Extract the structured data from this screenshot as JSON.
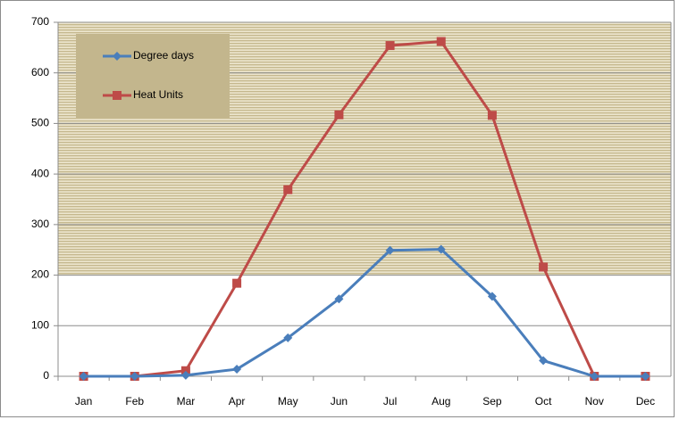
{
  "chart_data": {
    "type": "line",
    "categories": [
      "Jan",
      "Feb",
      "Mar",
      "Apr",
      "May",
      "Jun",
      "Jul",
      "Aug",
      "Sep",
      "Oct",
      "Nov",
      "Dec"
    ],
    "series": [
      {
        "name": "Degree days",
        "color": "#4a7ebb",
        "marker": "diamond",
        "values": [
          0,
          0,
          2,
          14,
          76,
          153,
          249,
          251,
          158,
          31,
          0,
          0
        ]
      },
      {
        "name": "Heat Units",
        "color": "#be4b48",
        "marker": "square",
        "values": [
          0,
          0,
          11,
          184,
          369,
          517,
          654,
          662,
          516,
          216,
          0,
          0
        ]
      }
    ],
    "ylim": [
      0,
      700
    ],
    "yticks": [
      0,
      100,
      200,
      300,
      400,
      500,
      600,
      700
    ],
    "grid": true,
    "shaded_band": [
      200,
      700
    ],
    "legend": "top-left"
  }
}
